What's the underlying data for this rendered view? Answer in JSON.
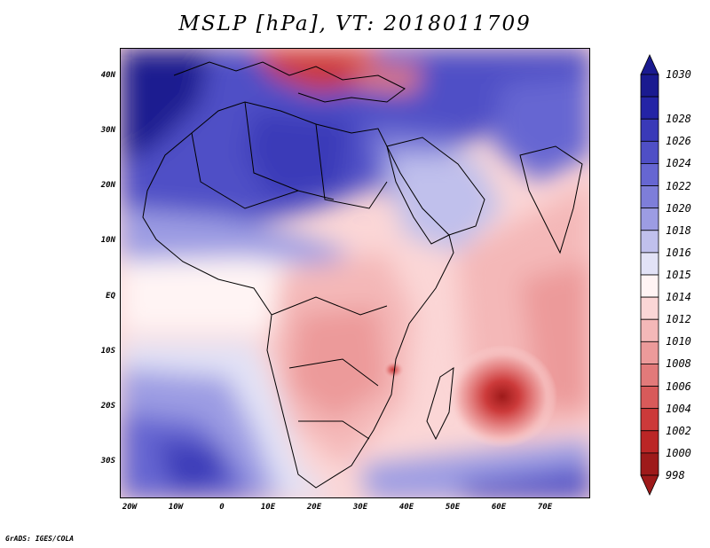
{
  "title": "MSLP [hPa], VT: 2018011709",
  "footer": "GrADS: IGES/COLA",
  "map": {
    "lon_range": [
      -22,
      80
    ],
    "lat_range": [
      -37,
      45
    ],
    "lat_ticks": [
      "40N",
      "30N",
      "20N",
      "10N",
      "EQ",
      "10S",
      "20S",
      "30S"
    ],
    "lat_values": [
      40,
      30,
      20,
      10,
      0,
      -10,
      -20,
      -30
    ],
    "lon_ticks": [
      "20W",
      "10W",
      "0",
      "10E",
      "20E",
      "30E",
      "40E",
      "50E",
      "60E",
      "70E"
    ],
    "lon_values": [
      -20,
      -10,
      0,
      10,
      20,
      30,
      40,
      50,
      60,
      70
    ]
  },
  "colorbar": {
    "labels": [
      "1030",
      "1028",
      "1026",
      "1024",
      "1022",
      "1020",
      "1018",
      "1016",
      "1015",
      "1014",
      "1012",
      "1010",
      "1008",
      "1006",
      "1004",
      "1002",
      "1000",
      "998"
    ],
    "colors": [
      "#1a1a90",
      "#2424a6",
      "#3a3ab8",
      "#4f4fc6",
      "#6666d2",
      "#7e7ed9",
      "#9c9ce3",
      "#c0c0ec",
      "#e2e2f6",
      "#fff4f4",
      "#fbd6d6",
      "#f4b8b8",
      "#ec9a9a",
      "#e27a7a",
      "#d85a5a",
      "#cc3a3a",
      "#bb2626",
      "#9e1a1a"
    ]
  }
}
